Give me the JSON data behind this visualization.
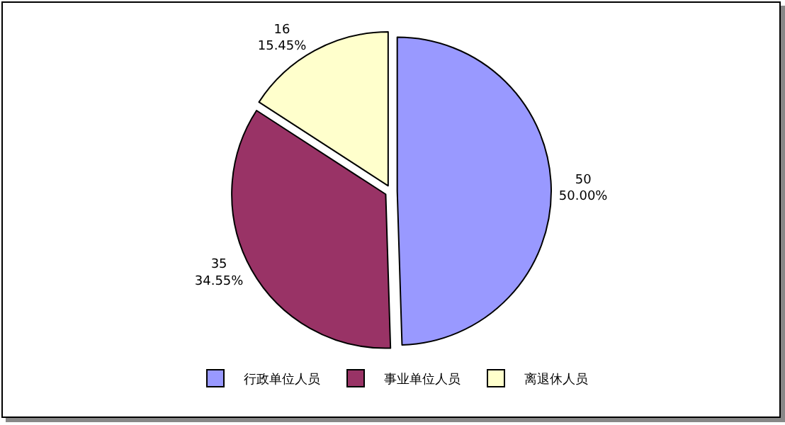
{
  "chart_data": {
    "type": "pie",
    "categories": [
      "行政单位人员",
      "事业单位人员",
      "离退休人员"
    ],
    "values": [
      50,
      35,
      16
    ],
    "colors": [
      "#9999ff",
      "#993366",
      "#ffffcc"
    ],
    "value_labels": [
      "50\n50.00%",
      "35\n34.55%",
      "16\n15.45%"
    ],
    "legend": "bottom"
  }
}
